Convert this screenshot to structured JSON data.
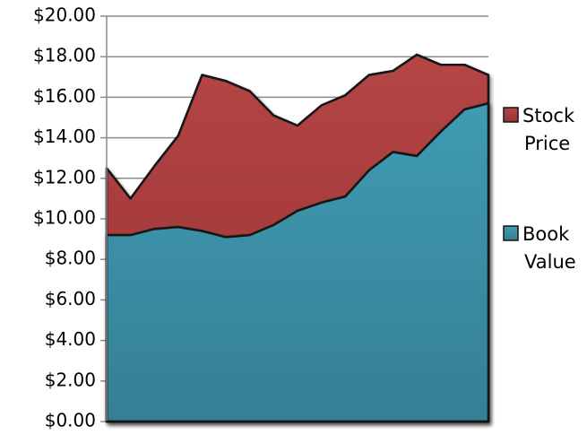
{
  "chart_data": {
    "type": "area",
    "stacked": false,
    "x": [
      1,
      2,
      3,
      4,
      5,
      6,
      7,
      8,
      9,
      10,
      11,
      12,
      13,
      14,
      15,
      16,
      17
    ],
    "series": [
      {
        "name": "Stock Price",
        "legend_lines": [
          "Stock",
          "Price"
        ],
        "color": "#a33a3a",
        "values": [
          12.5,
          11.0,
          12.6,
          14.1,
          17.1,
          16.8,
          16.3,
          15.1,
          14.6,
          15.6,
          16.1,
          17.1,
          17.3,
          18.1,
          17.6,
          17.6,
          17.1
        ]
      },
      {
        "name": "Book Value",
        "legend_lines": [
          "Book",
          "Value"
        ],
        "color": "#3a91a8",
        "values": [
          9.2,
          9.2,
          9.5,
          9.6,
          9.4,
          9.1,
          9.2,
          9.7,
          10.4,
          10.8,
          11.1,
          12.4,
          13.3,
          13.1,
          14.3,
          15.4,
          15.7
        ]
      }
    ],
    "ylim": [
      0,
      20
    ],
    "yticks": [
      0,
      2,
      4,
      6,
      8,
      10,
      12,
      14,
      16,
      18,
      20
    ],
    "ytick_labels": [
      "$0.00",
      "$2.00",
      "$4.00",
      "$6.00",
      "$8.00",
      "$10.00",
      "$12.00",
      "$14.00",
      "$16.00",
      "$18.00",
      "$20.00"
    ],
    "grid": true,
    "legend_position": "right",
    "title": "",
    "xlabel": "",
    "ylabel": ""
  }
}
